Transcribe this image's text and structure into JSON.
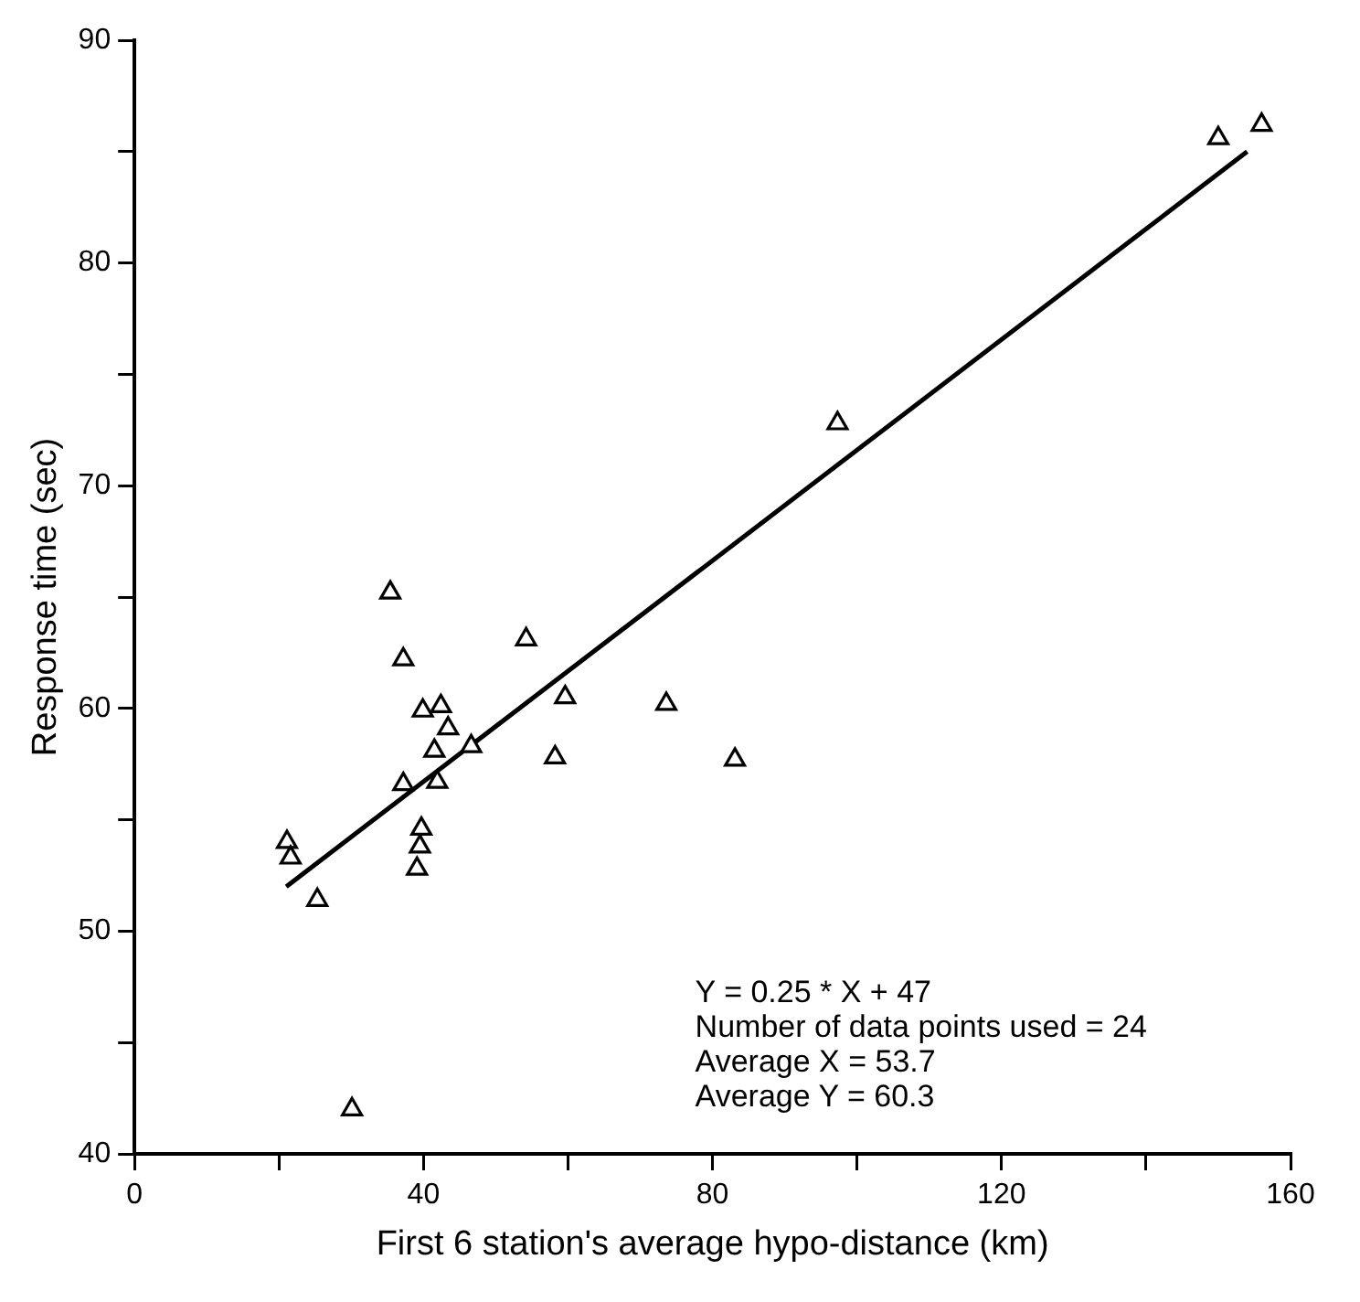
{
  "chart_data": {
    "type": "scatter",
    "xlabel": "First 6 station's average hypo-distance (km)",
    "ylabel": "Response time (sec)",
    "xlim": [
      0,
      160
    ],
    "ylim": [
      40,
      90
    ],
    "xticks": [
      0,
      {
        "value": 20,
        "label": null
      },
      40,
      {
        "value": 60,
        "label": null
      },
      80,
      {
        "value": 100,
        "label": null
      },
      120,
      {
        "value": 140,
        "label": null
      },
      160
    ],
    "yticks": [
      40,
      {
        "value": 45,
        "label": null
      },
      50,
      {
        "value": 55,
        "label": null
      },
      60,
      {
        "value": 65,
        "label": null
      },
      70,
      {
        "value": 75,
        "label": null
      },
      80,
      {
        "value": 85,
        "label": null
      },
      90
    ],
    "grid": false,
    "legend": false,
    "marker": "triangle",
    "series": [
      {
        "color": "#000000",
        "x": [
          35.4,
          37.2,
          39.9,
          42.4,
          43.4,
          41.5,
          46.6,
          37.2,
          41.9,
          39.7,
          39.5,
          39.1,
          21.1,
          21.6,
          25.3,
          30.1,
          54.2,
          59.6,
          58.2,
          97.3,
          73.6,
          83.1,
          150,
          156
        ],
        "values": [
          65.2,
          62.2,
          59.9,
          60.1,
          59.1,
          58.1,
          58.3,
          56.6,
          56.7,
          54.6,
          53.8,
          52.8,
          54.0,
          53.3,
          51.4,
          42.0,
          63.1,
          60.5,
          57.8,
          72.8,
          60.2,
          57.7,
          85.6,
          86.2
        ]
      },
      {
        "type": "line",
        "color": "#000000",
        "marker": "none",
        "line_style": "solid",
        "x": [
          21,
          154
        ],
        "values": [
          52,
          85
        ]
      }
    ],
    "annotations": [
      "Y = 0.25 * X + 47",
      "Number of data points used = 24",
      "Average X = 53.7",
      "Average Y = 60.3"
    ]
  }
}
